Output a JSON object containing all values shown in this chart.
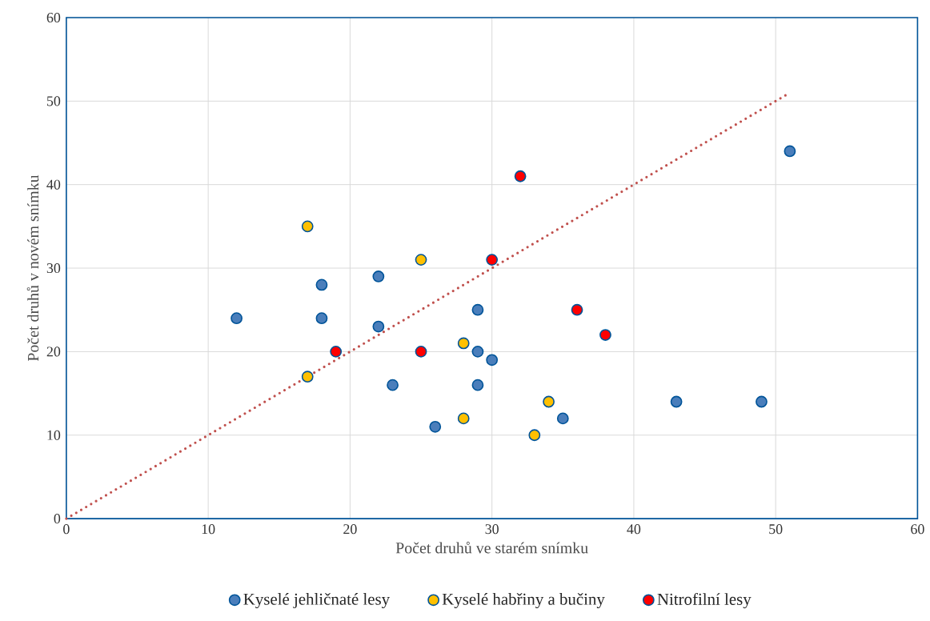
{
  "chart_data": {
    "type": "scatter",
    "xlabel": "Počet druhů ve starém snímku",
    "ylabel": "Počet druhů v novém snímku",
    "xlim": [
      0,
      60
    ],
    "ylim": [
      0,
      60
    ],
    "xticks": [
      0,
      10,
      20,
      30,
      40,
      50,
      60
    ],
    "yticks": [
      0,
      10,
      20,
      30,
      40,
      50,
      60
    ],
    "grid": true,
    "legend": "bottom",
    "marker": "circle",
    "series": [
      {
        "type": "line",
        "color": "#c0504d",
        "line_style": "dotted",
        "marker": "none",
        "x": [
          0,
          51
        ],
        "values": [
          0,
          51
        ]
      },
      {
        "name": "Kyselé jehličnaté lesy",
        "color": "#4a7ebb",
        "x": [
          12,
          18,
          18,
          22,
          22,
          23,
          26,
          29,
          29,
          29,
          30,
          35,
          43,
          49,
          51
        ],
        "values": [
          24,
          28,
          24,
          29,
          23,
          16,
          11,
          25,
          20,
          16,
          19,
          12,
          14,
          14,
          44
        ]
      },
      {
        "name": "Kyselé habřiny a bučiny",
        "color": "#ffc000",
        "x": [
          17,
          25,
          17,
          28,
          28,
          34,
          33
        ],
        "values": [
          35,
          31,
          17,
          21,
          12,
          14,
          10
        ]
      },
      {
        "name": "Nitrofilní lesy",
        "color": "#ff0000",
        "x": [
          32,
          30,
          19,
          25,
          36,
          38
        ],
        "values": [
          41,
          31,
          20,
          20,
          25,
          22
        ]
      }
    ]
  }
}
